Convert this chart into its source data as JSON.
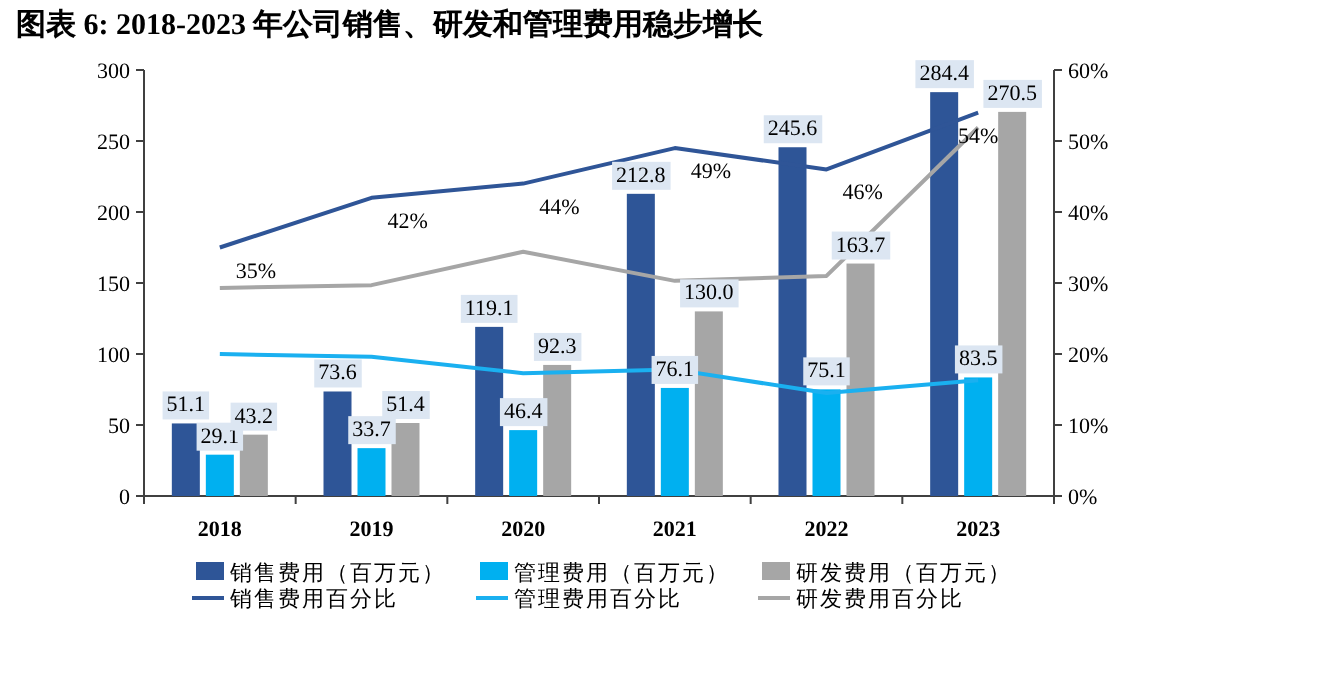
{
  "chart_data": {
    "type": "bar",
    "title": "图表 6:  2018-2023 年公司销售、研发和管理费用稳步增长",
    "categories": [
      "2018",
      "2019",
      "2020",
      "2021",
      "2022",
      "2023"
    ],
    "series": [
      {
        "name": "销售费用（百万元）",
        "color": "#2e5597",
        "values": [
          51.1,
          73.6,
          119.1,
          212.8,
          245.6,
          284.4
        ],
        "value_labels": [
          "51.1",
          "73.6",
          "119.1",
          "212.8",
          "245.6",
          "284.4"
        ]
      },
      {
        "name": "管理费用（百万元）",
        "color": "#00b0f0",
        "values": [
          29.1,
          33.7,
          46.4,
          76.1,
          75.1,
          83.5
        ],
        "value_labels": [
          "29.1",
          "33.7",
          "46.4",
          "76.1",
          "75.1",
          "83.5"
        ]
      },
      {
        "name": "研发费用（百万元）",
        "color": "#a6a6a6",
        "values": [
          43.2,
          51.4,
          92.3,
          130.0,
          163.7,
          270.5
        ],
        "value_labels": [
          "43.2",
          "51.4",
          "92.3",
          "130.0",
          "163.7",
          "270.5"
        ]
      },
      {
        "name": "销售费用百分比",
        "type": "line",
        "axis": "y2",
        "color": "#2f5597",
        "values": [
          35,
          42,
          44,
          49,
          46,
          54
        ],
        "value_labels": [
          "35%",
          "42%",
          "44%",
          "49%",
          "46%",
          "54%"
        ]
      },
      {
        "name": "管理费用百分比",
        "type": "line",
        "axis": "y2",
        "color": "#1ab0f0",
        "values": [
          20.0,
          19.6,
          17.3,
          17.8,
          14.5,
          16.3
        ]
      },
      {
        "name": "研发费用百分比",
        "type": "line",
        "axis": "y2",
        "color": "#a6a6a6",
        "values": [
          29.3,
          29.7,
          34.4,
          30.3,
          31.0,
          51.9
        ]
      }
    ],
    "ylim": [
      0,
      300
    ],
    "yticks": [
      0,
      50,
      100,
      150,
      200,
      250,
      300
    ],
    "y2lim": [
      0,
      60
    ],
    "y2ticks": [
      {
        "value": 0,
        "label": "0%"
      },
      {
        "value": 10,
        "label": "10%"
      },
      {
        "value": 20,
        "label": "20%"
      },
      {
        "value": 30,
        "label": "30%"
      },
      {
        "value": 40,
        "label": "40%"
      },
      {
        "value": 50,
        "label": "50%"
      },
      {
        "value": 60,
        "label": "60%"
      }
    ],
    "grid": false,
    "legend": "bottom"
  }
}
